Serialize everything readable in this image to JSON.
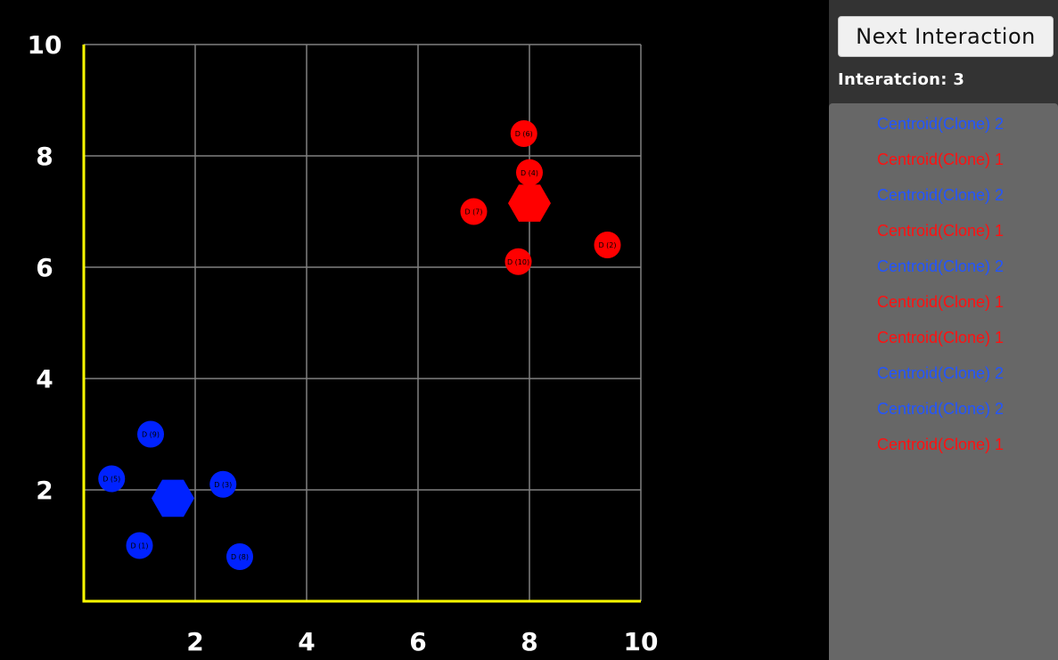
{
  "chart_data": {
    "type": "scatter",
    "xlim": [
      0,
      10
    ],
    "ylim": [
      0,
      10
    ],
    "x_ticks": [
      "2",
      "4",
      "6",
      "8",
      "10"
    ],
    "y_ticks": [
      "2",
      "4",
      "6",
      "8",
      "10"
    ],
    "grid": true,
    "colors": {
      "cluster_1": "#ff0000",
      "cluster_2": "#0022ff",
      "axis": "#ffff00",
      "grid": "#808080"
    },
    "series": [
      {
        "color": "#0022ff",
        "centroid": {
          "x": 1.6,
          "y": 1.85
        },
        "points": [
          {
            "label": "D (1)",
            "x": 1.0,
            "y": 1.0
          },
          {
            "label": "D (5)",
            "x": 0.5,
            "y": 2.2
          },
          {
            "label": "D (9)",
            "x": 1.2,
            "y": 3.0
          },
          {
            "label": "D (3)",
            "x": 2.5,
            "y": 2.1
          },
          {
            "label": "D (8)",
            "x": 2.8,
            "y": 0.8
          }
        ]
      },
      {
        "color": "#ff0000",
        "centroid": {
          "x": 8.0,
          "y": 7.15
        },
        "points": [
          {
            "label": "D (6)",
            "x": 7.9,
            "y": 8.4
          },
          {
            "label": "D (4)",
            "x": 8.0,
            "y": 7.7
          },
          {
            "label": "D (7)",
            "x": 7.0,
            "y": 7.0
          },
          {
            "label": "D (2)",
            "x": 9.4,
            "y": 6.4
          },
          {
            "label": "D (10)",
            "x": 7.8,
            "y": 6.1
          }
        ]
      }
    ]
  },
  "panel": {
    "button_label": "Next Interaction",
    "iteration_label": "Interatcion:",
    "iteration_value": "3",
    "items": [
      {
        "text": "Centroid(Clone) 2",
        "color": "#2255ff"
      },
      {
        "text": "Centroid(Clone) 1",
        "color": "#ff1111"
      },
      {
        "text": "Centroid(Clone) 2",
        "color": "#2255ff"
      },
      {
        "text": "Centroid(Clone) 1",
        "color": "#ff1111"
      },
      {
        "text": "Centroid(Clone) 2",
        "color": "#2255ff"
      },
      {
        "text": "Centroid(Clone) 1",
        "color": "#ff1111"
      },
      {
        "text": "Centroid(Clone) 1",
        "color": "#ff1111"
      },
      {
        "text": "Centroid(Clone) 2",
        "color": "#2255ff"
      },
      {
        "text": "Centroid(Clone) 2",
        "color": "#2255ff"
      },
      {
        "text": "Centroid(Clone) 1",
        "color": "#ff1111"
      }
    ]
  }
}
